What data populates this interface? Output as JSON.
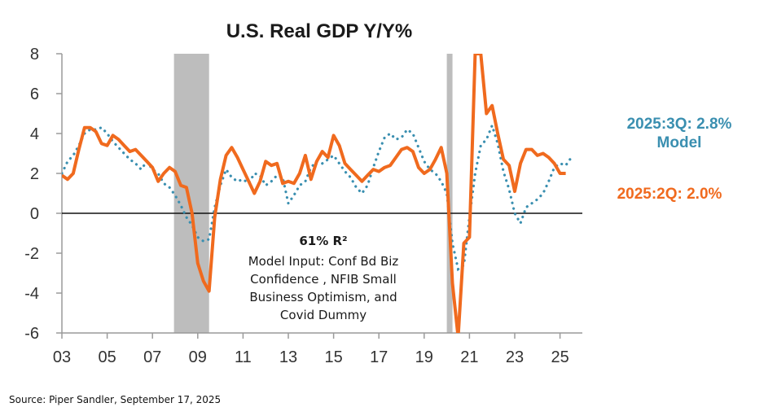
{
  "chart_data": {
    "type": "line",
    "title": "U.S. Real GDP Y/Y%",
    "xlabel": "",
    "ylabel": "",
    "xlim": [
      2003,
      2025.9
    ],
    "ylim": [
      -6,
      8
    ],
    "yticks": [
      8,
      6,
      4,
      2,
      0,
      -2,
      -4,
      -6
    ],
    "xticks": [
      {
        "value": 2003,
        "label": "03"
      },
      {
        "value": 2005,
        "label": "05"
      },
      {
        "value": 2007,
        "label": "07"
      },
      {
        "value": 2009,
        "label": "09"
      },
      {
        "value": 2011,
        "label": "11"
      },
      {
        "value": 2013,
        "label": "13"
      },
      {
        "value": 2015,
        "label": "15"
      },
      {
        "value": 2017,
        "label": "17"
      },
      {
        "value": 2019,
        "label": "19"
      },
      {
        "value": 2021,
        "label": "21"
      },
      {
        "value": 2023,
        "label": "23"
      },
      {
        "value": 2025,
        "label": "25"
      }
    ],
    "grid": false,
    "zero_line": true,
    "recessions": [
      {
        "start": 2007.95,
        "end": 2009.5
      },
      {
        "start": 2020.0,
        "end": 2020.25
      }
    ],
    "series": [
      {
        "name": "Real GDP Y/Y%",
        "style": "solid",
        "color": "#f06a1e",
        "points": [
          [
            2003.0,
            1.9
          ],
          [
            2003.25,
            1.7
          ],
          [
            2003.5,
            2.0
          ],
          [
            2003.75,
            3.2
          ],
          [
            2004.0,
            4.3
          ],
          [
            2004.25,
            4.3
          ],
          [
            2004.5,
            4.1
          ],
          [
            2004.75,
            3.5
          ],
          [
            2005.0,
            3.4
          ],
          [
            2005.25,
            3.9
          ],
          [
            2005.5,
            3.7
          ],
          [
            2005.75,
            3.4
          ],
          [
            2006.0,
            3.1
          ],
          [
            2006.25,
            3.2
          ],
          [
            2006.5,
            2.9
          ],
          [
            2006.75,
            2.6
          ],
          [
            2007.0,
            2.3
          ],
          [
            2007.25,
            1.6
          ],
          [
            2007.5,
            2.0
          ],
          [
            2007.75,
            2.3
          ],
          [
            2008.0,
            2.1
          ],
          [
            2008.25,
            1.4
          ],
          [
            2008.5,
            1.3
          ],
          [
            2008.75,
            0.0
          ],
          [
            2009.0,
            -2.5
          ],
          [
            2009.25,
            -3.4
          ],
          [
            2009.5,
            -3.9
          ],
          [
            2009.75,
            -0.2
          ],
          [
            2010.0,
            1.7
          ],
          [
            2010.25,
            2.9
          ],
          [
            2010.5,
            3.3
          ],
          [
            2010.75,
            2.8
          ],
          [
            2011.0,
            2.2
          ],
          [
            2011.25,
            1.6
          ],
          [
            2011.5,
            1.0
          ],
          [
            2011.75,
            1.6
          ],
          [
            2012.0,
            2.6
          ],
          [
            2012.25,
            2.4
          ],
          [
            2012.5,
            2.5
          ],
          [
            2012.75,
            1.5
          ],
          [
            2013.0,
            1.6
          ],
          [
            2013.25,
            1.5
          ],
          [
            2013.5,
            2.0
          ],
          [
            2013.75,
            2.9
          ],
          [
            2014.0,
            1.7
          ],
          [
            2014.25,
            2.6
          ],
          [
            2014.5,
            3.1
          ],
          [
            2014.75,
            2.8
          ],
          [
            2015.0,
            3.9
          ],
          [
            2015.25,
            3.4
          ],
          [
            2015.5,
            2.5
          ],
          [
            2015.75,
            2.2
          ],
          [
            2016.0,
            1.9
          ],
          [
            2016.25,
            1.6
          ],
          [
            2016.5,
            1.9
          ],
          [
            2016.75,
            2.2
          ],
          [
            2017.0,
            2.1
          ],
          [
            2017.25,
            2.3
          ],
          [
            2017.5,
            2.4
          ],
          [
            2017.75,
            2.8
          ],
          [
            2018.0,
            3.2
          ],
          [
            2018.25,
            3.3
          ],
          [
            2018.5,
            3.1
          ],
          [
            2018.75,
            2.3
          ],
          [
            2019.0,
            2.0
          ],
          [
            2019.25,
            2.2
          ],
          [
            2019.5,
            2.7
          ],
          [
            2019.75,
            3.3
          ],
          [
            2020.0,
            2.0
          ],
          [
            2020.25,
            -3.5
          ],
          [
            2020.5,
            -6.2
          ],
          [
            2020.75,
            -1.5
          ],
          [
            2021.0,
            -1.2
          ],
          [
            2021.25,
            8.0
          ],
          [
            2021.5,
            8.0
          ],
          [
            2021.75,
            5.0
          ],
          [
            2022.0,
            5.4
          ],
          [
            2022.25,
            4.0
          ],
          [
            2022.5,
            2.7
          ],
          [
            2022.75,
            2.4
          ],
          [
            2023.0,
            1.1
          ],
          [
            2023.25,
            2.5
          ],
          [
            2023.5,
            3.2
          ],
          [
            2023.75,
            3.2
          ],
          [
            2024.0,
            2.9
          ],
          [
            2024.25,
            3.0
          ],
          [
            2024.5,
            2.8
          ],
          [
            2024.75,
            2.5
          ],
          [
            2025.0,
            2.0
          ],
          [
            2025.25,
            2.0
          ]
        ]
      },
      {
        "name": "Model",
        "style": "dotted",
        "color": "#3a8fb0",
        "points": [
          [
            2003.0,
            2.0
          ],
          [
            2003.25,
            2.6
          ],
          [
            2003.5,
            2.9
          ],
          [
            2003.75,
            3.4
          ],
          [
            2004.0,
            4.0
          ],
          [
            2004.25,
            4.2
          ],
          [
            2004.5,
            4.2
          ],
          [
            2004.75,
            4.3
          ],
          [
            2005.0,
            4.0
          ],
          [
            2005.25,
            3.6
          ],
          [
            2005.5,
            3.3
          ],
          [
            2005.75,
            3.0
          ],
          [
            2006.0,
            2.7
          ],
          [
            2006.25,
            2.5
          ],
          [
            2006.5,
            2.2
          ],
          [
            2006.75,
            2.6
          ],
          [
            2007.0,
            2.2
          ],
          [
            2007.25,
            2.0
          ],
          [
            2007.5,
            1.5
          ],
          [
            2007.75,
            1.3
          ],
          [
            2008.0,
            0.9
          ],
          [
            2008.25,
            0.4
          ],
          [
            2008.5,
            -0.2
          ],
          [
            2008.75,
            -0.6
          ],
          [
            2009.0,
            -1.2
          ],
          [
            2009.25,
            -1.4
          ],
          [
            2009.5,
            -1.3
          ],
          [
            2009.75,
            0.3
          ],
          [
            2010.0,
            1.4
          ],
          [
            2010.25,
            2.2
          ],
          [
            2010.5,
            1.8
          ],
          [
            2010.75,
            1.6
          ],
          [
            2011.0,
            1.7
          ],
          [
            2011.25,
            1.5
          ],
          [
            2011.5,
            2.0
          ],
          [
            2011.75,
            1.9
          ],
          [
            2012.0,
            1.4
          ],
          [
            2012.25,
            1.6
          ],
          [
            2012.5,
            1.9
          ],
          [
            2012.75,
            1.8
          ],
          [
            2013.0,
            0.5
          ],
          [
            2013.25,
            0.9
          ],
          [
            2013.5,
            1.4
          ],
          [
            2013.75,
            1.6
          ],
          [
            2014.0,
            2.3
          ],
          [
            2014.25,
            2.6
          ],
          [
            2014.5,
            2.5
          ],
          [
            2014.75,
            2.7
          ],
          [
            2015.0,
            2.9
          ],
          [
            2015.25,
            2.5
          ],
          [
            2015.5,
            2.1
          ],
          [
            2015.75,
            1.8
          ],
          [
            2016.0,
            1.3
          ],
          [
            2016.25,
            1.0
          ],
          [
            2016.5,
            1.4
          ],
          [
            2016.75,
            2.3
          ],
          [
            2017.0,
            3.1
          ],
          [
            2017.25,
            3.8
          ],
          [
            2017.5,
            4.0
          ],
          [
            2017.75,
            3.7
          ],
          [
            2018.0,
            3.8
          ],
          [
            2018.25,
            4.2
          ],
          [
            2018.5,
            4.0
          ],
          [
            2018.75,
            3.3
          ],
          [
            2019.0,
            2.6
          ],
          [
            2019.25,
            2.2
          ],
          [
            2019.5,
            2.0
          ],
          [
            2019.75,
            1.6
          ],
          [
            2020.0,
            1.0
          ],
          [
            2020.25,
            -1.5
          ],
          [
            2020.5,
            -2.8
          ],
          [
            2020.75,
            -2.6
          ],
          [
            2021.0,
            -0.2
          ],
          [
            2021.25,
            2.0
          ],
          [
            2021.5,
            3.4
          ],
          [
            2021.75,
            3.7
          ],
          [
            2022.0,
            4.4
          ],
          [
            2022.25,
            3.5
          ],
          [
            2022.5,
            2.1
          ],
          [
            2022.75,
            1.2
          ],
          [
            2023.0,
            0.0
          ],
          [
            2023.25,
            -0.5
          ],
          [
            2023.5,
            0.3
          ],
          [
            2023.75,
            0.5
          ],
          [
            2024.0,
            0.7
          ],
          [
            2024.25,
            1.0
          ],
          [
            2024.5,
            1.6
          ],
          [
            2024.75,
            2.3
          ],
          [
            2025.0,
            2.5
          ],
          [
            2025.25,
            2.4
          ],
          [
            2025.5,
            2.8
          ]
        ]
      }
    ],
    "annotations": {
      "r2": "61% R²",
      "model_lines": [
        "Model Input: Conf Bd Biz",
        "Confidence , NFIB Small",
        "Business Optimism, and",
        "Covid Dummy"
      ],
      "model_label_line1": "2025:3Q: 2.8%",
      "model_label_line2": "Model",
      "actual_label": "2025:2Q: 2.0%"
    }
  },
  "source": "Source: Piper Sandler, September 17, 2025"
}
